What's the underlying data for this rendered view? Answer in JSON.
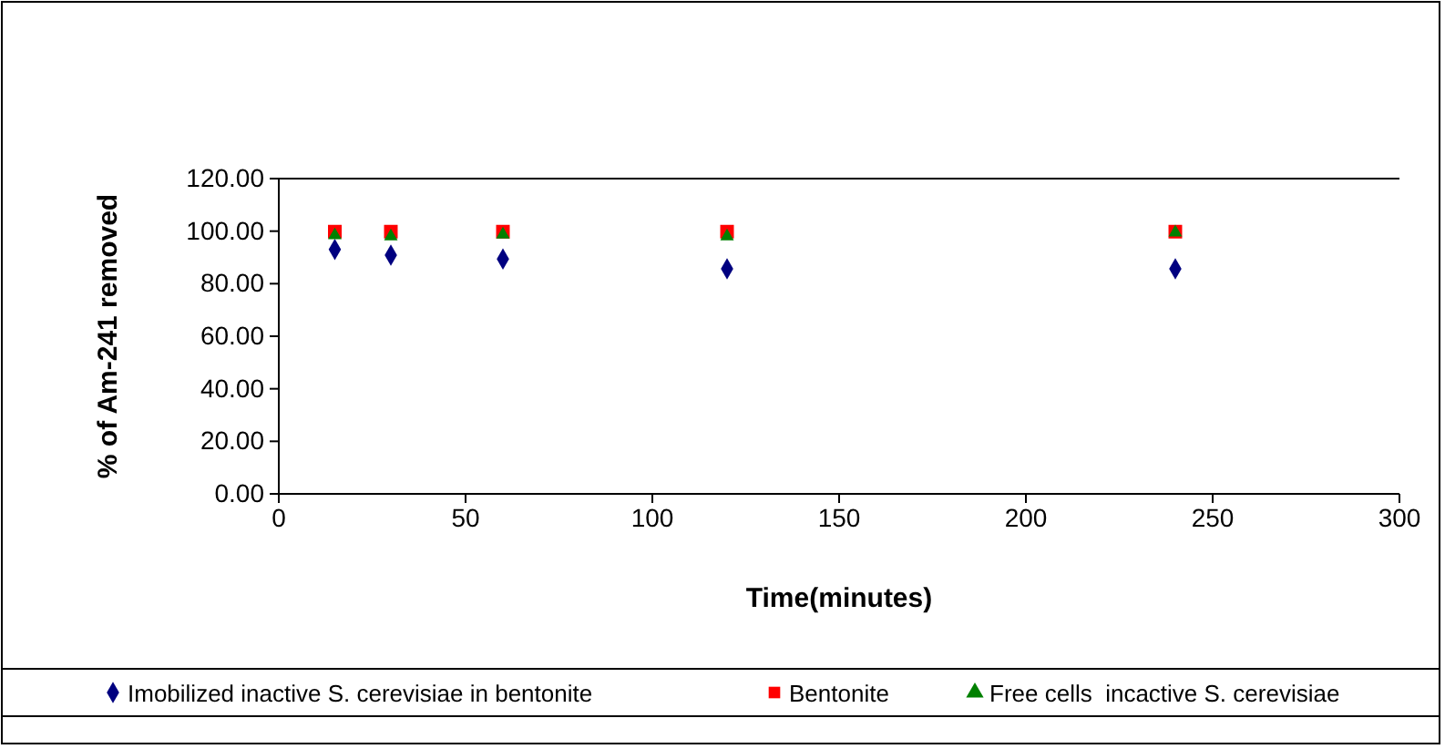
{
  "chart_data": {
    "type": "scatter",
    "xlabel": "Time(minutes)",
    "ylabel": "% of Am-241 removed",
    "x": [
      15,
      30,
      60,
      120,
      240
    ],
    "series": [
      {
        "name": "Imobilized inactive S. cerevisiae in bentonite",
        "color": "#000080",
        "marker": "diamond",
        "values": [
          93.0,
          90.9,
          89.4,
          85.7,
          85.7
        ]
      },
      {
        "name": "Bentonite",
        "color": "#ff0000",
        "marker": "square",
        "values": [
          99.8,
          99.8,
          99.8,
          99.8,
          99.8
        ]
      },
      {
        "name": "Free cells  incactive S. cerevisiae",
        "color": "#008000",
        "marker": "triangle",
        "values": [
          98.4,
          98.0,
          98.7,
          98.0,
          99.5
        ]
      }
    ],
    "xlim": [
      0,
      300
    ],
    "xticks": [
      0,
      50,
      100,
      150,
      200,
      250,
      300
    ],
    "ylim": [
      0,
      120
    ],
    "yticks": [
      {
        "value": 0,
        "label": "0.00"
      },
      {
        "value": 20,
        "label": "20.00"
      },
      {
        "value": 40,
        "label": "40.00"
      },
      {
        "value": 60,
        "label": "60.00"
      },
      {
        "value": 80,
        "label": "80.00"
      },
      {
        "value": 100,
        "label": "100.00"
      },
      {
        "value": 120,
        "label": "120.00"
      }
    ],
    "grid": false,
    "legend": "bottom"
  }
}
